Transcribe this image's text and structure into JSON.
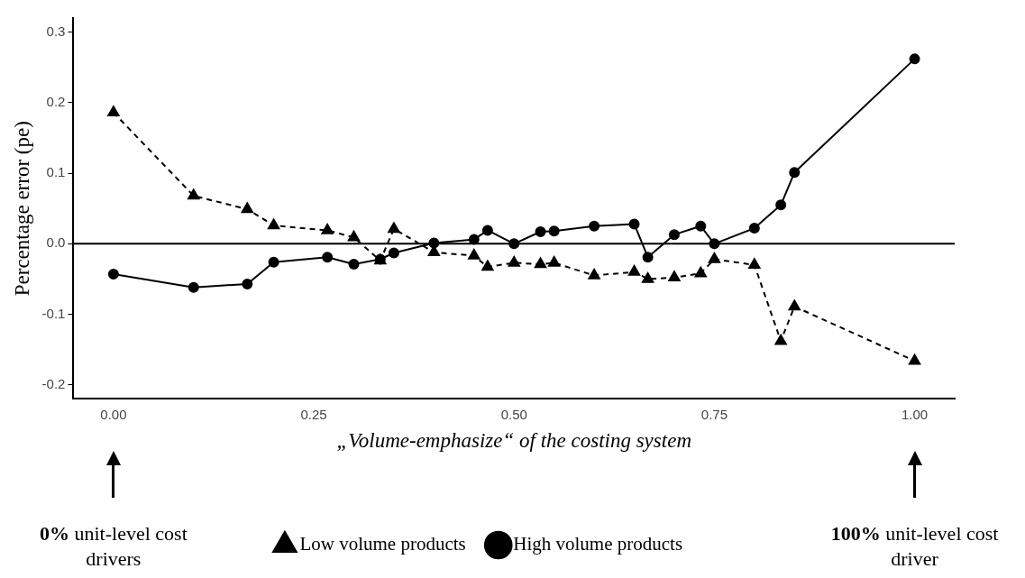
{
  "chart_data": {
    "type": "line",
    "xlabel": "„Volume-emphasize“ of the costing system",
    "ylabel": "Percentage error (pe)",
    "xlim": [
      -0.05,
      1.05
    ],
    "xticks": [
      {
        "value": 0,
        "label": "0.00"
      },
      {
        "value": 0.25,
        "label": "0.25"
      },
      {
        "value": 0.5,
        "label": "0.50"
      },
      {
        "value": 0.75,
        "label": "0.75"
      },
      {
        "value": 1,
        "label": "1.00"
      }
    ],
    "ylim": [
      -0.22,
      0.32
    ],
    "yticks": [
      {
        "value": -0.2,
        "label": "-0.2"
      },
      {
        "value": -0.1,
        "label": "-0.1"
      },
      {
        "value": 0,
        "label": "0.0"
      },
      {
        "value": 0.1,
        "label": "0.1"
      },
      {
        "value": 0.2,
        "label": "0.2"
      },
      {
        "value": 0.3,
        "label": "0.3"
      }
    ],
    "grid": false,
    "legend": "bottom",
    "x": [
      0,
      0.1,
      0.167,
      0.2,
      0.267,
      0.3,
      0.333,
      0.35,
      0.4,
      0.45,
      0.467,
      0.5,
      0.533,
      0.55,
      0.6,
      0.65,
      0.667,
      0.7,
      0.733,
      0.75,
      0.8,
      0.833,
      0.85,
      1.0
    ],
    "series": [
      {
        "name": "High volume products",
        "color": "#000000",
        "marker": "circle",
        "line_style": "solid",
        "values": [
          -0.043,
          -0.062,
          -0.057,
          -0.026,
          -0.019,
          -0.029,
          -0.022,
          -0.013,
          0.001,
          0.006,
          0.019,
          0.0,
          0.017,
          0.018,
          0.025,
          0.028,
          -0.019,
          0.013,
          0.025,
          0.0,
          0.022,
          0.055,
          0.101,
          0.262
        ]
      },
      {
        "name": "Low volume products",
        "color": "#000000",
        "marker": "triangle",
        "line_style": "dashed",
        "values": [
          0.186,
          0.068,
          0.049,
          0.026,
          0.019,
          0.009,
          -0.024,
          0.021,
          -0.012,
          -0.017,
          -0.033,
          -0.027,
          -0.029,
          -0.027,
          -0.045,
          -0.04,
          -0.05,
          -0.048,
          -0.042,
          -0.022,
          -0.03,
          -0.138,
          -0.089,
          -0.166
        ]
      }
    ],
    "ref_lines": [
      {
        "axis": "y",
        "value": 0,
        "color": "#000000",
        "line_style": "solid"
      }
    ],
    "annotations": [
      "0% unit-level cost drivers",
      "100% unit-level cost driver"
    ]
  }
}
